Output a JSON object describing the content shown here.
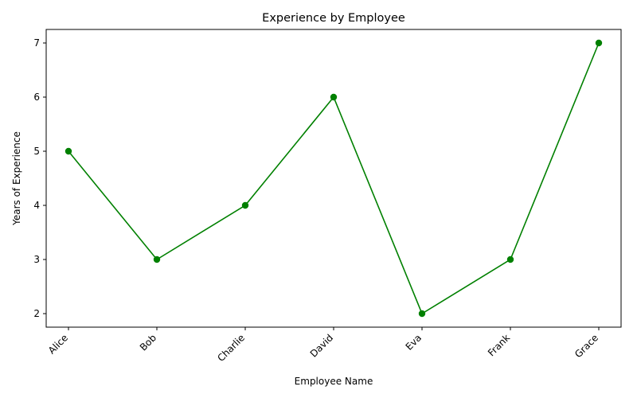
{
  "chart_data": {
    "type": "line",
    "title": "Experience by Employee",
    "xlabel": "Employee Name",
    "ylabel": "Years of Experience",
    "categories": [
      "Alice",
      "Bob",
      "Charlie",
      "David",
      "Eva",
      "Frank",
      "Grace"
    ],
    "series": [
      {
        "values": [
          5,
          3,
          4,
          6,
          2,
          3,
          7
        ],
        "color": "#008000",
        "marker": "circle"
      }
    ],
    "yticks": [
      2,
      3,
      4,
      5,
      6,
      7
    ],
    "ylim": [
      1.75,
      7.25
    ],
    "grid": false,
    "legend": "none"
  }
}
